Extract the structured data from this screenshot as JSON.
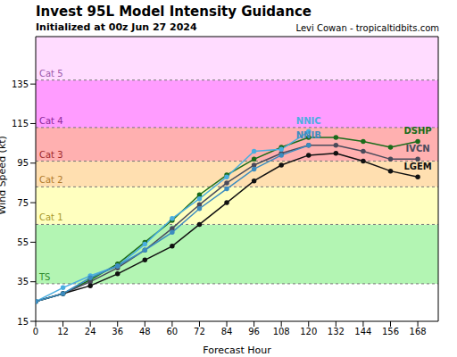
{
  "chart_data": {
    "type": "line",
    "title": "Invest 95L Model Intensity Guidance",
    "subtitle": "Initialized at 00z Jun 27 2024",
    "credit": "Levi Cowan - tropicaltidbits.com",
    "x_label": "Forecast Hour",
    "y_label": "Wind Speed (kt)",
    "x": [
      0,
      12,
      24,
      36,
      48,
      60,
      72,
      84,
      96,
      108,
      120,
      132,
      144,
      156,
      168
    ],
    "xlim": [
      0,
      177
    ],
    "xticks": [
      0,
      12,
      24,
      36,
      48,
      60,
      72,
      84,
      96,
      108,
      120,
      132,
      144,
      156,
      168
    ],
    "ylim": [
      15,
      159
    ],
    "yticks": [
      15,
      35,
      55,
      75,
      95,
      115,
      135
    ],
    "bands": [
      {
        "label": "TS",
        "from": 34,
        "to": 64,
        "color": "#b3f5b3"
      },
      {
        "label": "Cat 1",
        "from": 64,
        "to": 83,
        "color": "#ffffbf"
      },
      {
        "label": "Cat 2",
        "from": 83,
        "to": 96,
        "color": "#ffdfb0"
      },
      {
        "label": "Cat 3",
        "from": 96,
        "to": 113,
        "color": "#ffb0b0"
      },
      {
        "label": "Cat 4",
        "from": 113,
        "to": 137,
        "color": "#ff9cff"
      },
      {
        "label": "Cat 5",
        "from": 137,
        "to": 159,
        "color": "#ffdcff"
      }
    ],
    "marker": "o",
    "series": [
      {
        "name": "DSHP",
        "color": "#1a6b1a",
        "values": [
          25,
          29,
          36,
          44,
          55,
          66,
          79,
          89,
          97,
          103,
          108,
          108,
          106,
          103,
          106
        ]
      },
      {
        "name": "IVCN",
        "color": "#4a4a5a",
        "values": [
          25,
          29,
          35,
          42,
          51,
          62,
          74,
          85,
          94,
          100,
          104,
          104,
          101,
          97,
          97
        ]
      },
      {
        "name": "LGEM",
        "color": "#111111",
        "values": [
          25,
          29,
          33,
          39,
          46,
          53,
          64,
          75,
          86,
          94,
          99,
          100,
          96,
          91,
          88
        ]
      },
      {
        "name": "NNIC",
        "color": "#4aaee0",
        "values": [
          25,
          32,
          38,
          43,
          54,
          67,
          77,
          88,
          101,
          102,
          111,
          null,
          null,
          null,
          null
        ]
      },
      {
        "name": "NNIB",
        "color": "#3c8cc0",
        "values": [
          25,
          29,
          37,
          43,
          51,
          60,
          72,
          82,
          92,
          99,
          104,
          null,
          null,
          null,
          null
        ]
      }
    ]
  }
}
